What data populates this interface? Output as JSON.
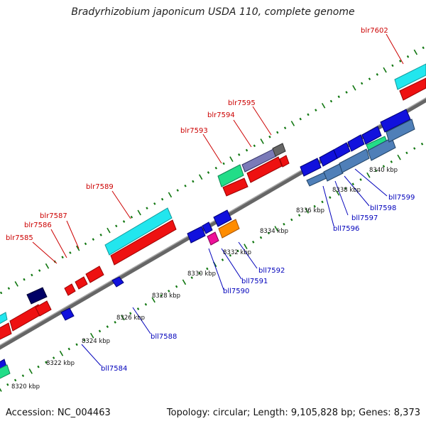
{
  "title": "Bradyrhizobium japonicum USDA 110, complete genome",
  "footer": {
    "accession": "Accession: NC_004463",
    "topology": "Topology: circular; Length: 9,105,828 bp; Genes: 8,373"
  },
  "colors": {
    "cyan": "#22e6ee",
    "red": "#ee1111",
    "blue": "#1111dd",
    "navy": "#000066",
    "green": "#22dd88",
    "steel": "#4f7fb8",
    "orange": "#ff8c00",
    "magenta": "#ee1199",
    "grey": "#666666",
    "ruler": "#888888",
    "tick": "#117711"
  },
  "kbp_ticks": [
    "8320 kbp",
    "8322 kbp",
    "8324 kbp",
    "8326 kbp",
    "8328 kbp",
    "8330 kbp",
    "8332 kbp",
    "8334 kbp",
    "8336 kbp",
    "8338 kbp",
    "8340 kbp"
  ],
  "top_genes": [
    "blr7585",
    "blr7586",
    "blr7587",
    "blr7589",
    "blr7593",
    "blr7594",
    "blr7595",
    "blr7602"
  ],
  "bottom_genes": [
    "bll7584",
    "bll7588",
    "bll7590",
    "bll7591",
    "bll7592",
    "bll7596",
    "bll7597",
    "bll7598",
    "bll7599"
  ]
}
